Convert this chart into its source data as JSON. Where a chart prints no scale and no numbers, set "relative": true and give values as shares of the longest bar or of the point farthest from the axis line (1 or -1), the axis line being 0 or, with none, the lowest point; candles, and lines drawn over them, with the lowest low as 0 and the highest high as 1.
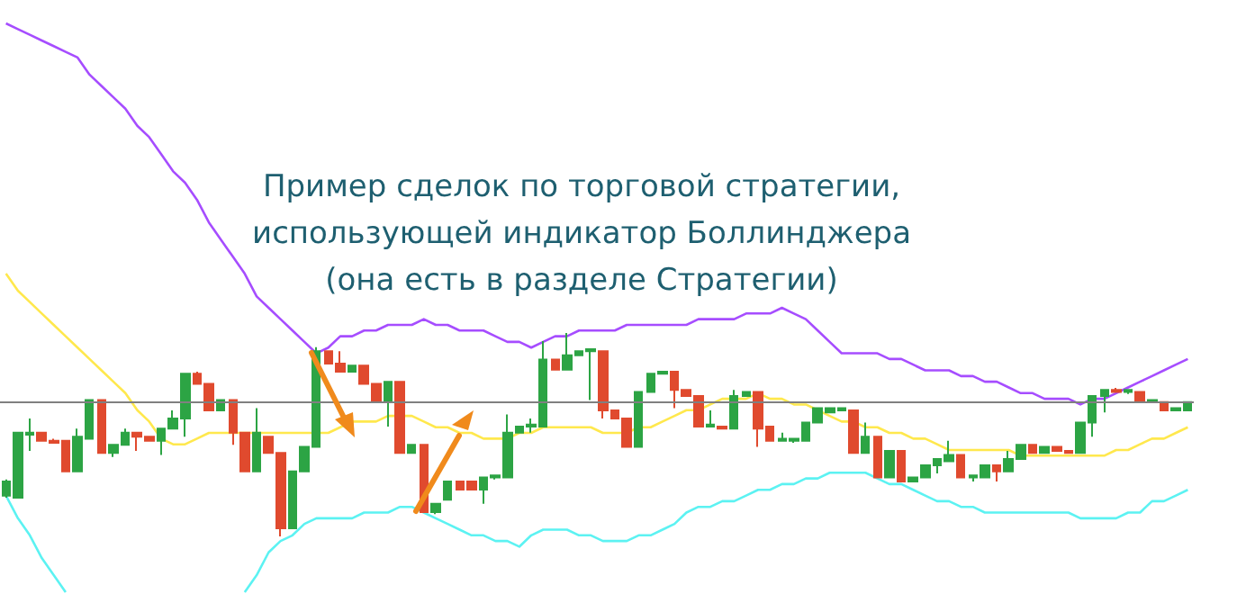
{
  "chart_data": [
    {
      "type": "line",
      "relative": true,
      "tick_labels": false,
      "categories": [
        null,
        null,
        null,
        null,
        null,
        null,
        null,
        null,
        null,
        null,
        null,
        null,
        null,
        null,
        null,
        null,
        null,
        null,
        null,
        null,
        null,
        null,
        null,
        null,
        null,
        null,
        null,
        null,
        null,
        null,
        null,
        null,
        null,
        null,
        null,
        null,
        null,
        null,
        null,
        null,
        null,
        null,
        null,
        null,
        null,
        null,
        null,
        null,
        null,
        null,
        null,
        null,
        null,
        null,
        null,
        null,
        null,
        null,
        null,
        null,
        null,
        null,
        null,
        null,
        null,
        null,
        null,
        null,
        null,
        null,
        null,
        null,
        null,
        null,
        null,
        null,
        null,
        null,
        null,
        null,
        null,
        null,
        null,
        null,
        null,
        null,
        null,
        null,
        null,
        null,
        null,
        null,
        null,
        null,
        null,
        null,
        null,
        null,
        null,
        null
      ],
      "series": [
        {
          "type": "line",
          "color": "#a64dff",
          "values": [
            1.0,
            0.99,
            0.98,
            0.97,
            0.96,
            0.95,
            0.94,
            0.91,
            0.89,
            0.87,
            0.85,
            0.82,
            0.8,
            0.77,
            0.74,
            0.72,
            0.69,
            0.65,
            0.62,
            0.59,
            0.56,
            0.52,
            0.5,
            0.48,
            0.46,
            0.44,
            0.42,
            0.43,
            0.45,
            0.45,
            0.46,
            0.46,
            0.47,
            0.47,
            0.47,
            0.48,
            0.47,
            0.47,
            0.46,
            0.46,
            0.46,
            0.45,
            0.44,
            0.44,
            0.43,
            0.44,
            0.45,
            0.45,
            0.46,
            0.46,
            0.46,
            0.46,
            0.47,
            0.47,
            0.47,
            0.47,
            0.47,
            0.47,
            0.48,
            0.48,
            0.48,
            0.48,
            0.49,
            0.49,
            0.49,
            0.5,
            0.49,
            0.48,
            0.46,
            0.44,
            0.42,
            0.42,
            0.42,
            0.42,
            0.41,
            0.41,
            0.4,
            0.39,
            0.39,
            0.39,
            0.38,
            0.38,
            0.37,
            0.37,
            0.36,
            0.35,
            0.35,
            0.34,
            0.34,
            0.34,
            0.33,
            0.34,
            0.34,
            0.35,
            0.36,
            0.37,
            0.38,
            0.39,
            0.4,
            0.41
          ]
        },
        {
          "type": "line",
          "color": "#ffe84d",
          "values": [
            0.56,
            0.53,
            0.51,
            0.49,
            0.47,
            0.45,
            0.43,
            0.41,
            0.39,
            0.37,
            0.35,
            0.32,
            0.3,
            0.27,
            0.26,
            0.26,
            0.27,
            0.28,
            0.28,
            0.28,
            0.28,
            0.28,
            0.28,
            0.28,
            0.28,
            0.28,
            0.28,
            0.28,
            0.29,
            0.3,
            0.3,
            0.3,
            0.31,
            0.31,
            0.31,
            0.3,
            0.29,
            0.29,
            0.28,
            0.28,
            0.27,
            0.27,
            0.27,
            0.28,
            0.28,
            0.29,
            0.29,
            0.29,
            0.29,
            0.29,
            0.28,
            0.28,
            0.28,
            0.29,
            0.29,
            0.3,
            0.31,
            0.32,
            0.32,
            0.33,
            0.34,
            0.34,
            0.34,
            0.35,
            0.34,
            0.34,
            0.33,
            0.33,
            0.32,
            0.31,
            0.3,
            0.3,
            0.29,
            0.29,
            0.28,
            0.28,
            0.27,
            0.27,
            0.26,
            0.25,
            0.25,
            0.25,
            0.25,
            0.25,
            0.25,
            0.24,
            0.24,
            0.24,
            0.24,
            0.24,
            0.24,
            0.24,
            0.24,
            0.25,
            0.25,
            0.26,
            0.27,
            0.27,
            0.28,
            0.29
          ]
        },
        {
          "type": "line",
          "color": "#5cf2f2",
          "values": [
            0.17,
            0.13,
            0.1,
            0.06,
            0.03,
            0,
            null,
            null,
            null,
            null,
            null,
            null,
            null,
            null,
            null,
            null,
            null,
            null,
            null,
            null,
            0,
            0.03,
            0.07,
            0.09,
            0.1,
            0.12,
            0.13,
            0.13,
            0.13,
            0.13,
            0.14,
            0.14,
            0.14,
            0.15,
            0.15,
            0.14,
            0.13,
            0.12,
            0.11,
            0.1,
            0.1,
            0.09,
            0.09,
            0.08,
            0.1,
            0.11,
            0.11,
            0.11,
            0.1,
            0.1,
            0.09,
            0.09,
            0.09,
            0.1,
            0.1,
            0.11,
            0.12,
            0.14,
            0.15,
            0.15,
            0.16,
            0.16,
            0.17,
            0.18,
            0.18,
            0.19,
            0.19,
            0.2,
            0.2,
            0.21,
            0.21,
            0.21,
            0.21,
            0.2,
            0.19,
            0.19,
            0.18,
            0.17,
            0.16,
            0.16,
            0.15,
            0.15,
            0.14,
            0.14,
            0.14,
            0.14,
            0.14,
            0.14,
            0.14,
            0.14,
            0.13,
            0.13,
            0.13,
            0.13,
            0.14,
            0.14,
            0.16,
            0.16,
            0.17,
            0.18
          ]
        }
      ]
    },
    {
      "type": "candlestick",
      "title": "Пример сделок по торговой стратегии,\nиспользующей индикатор Боллинджера\n(она есть в разделе Стратегии)",
      "relative": true,
      "tick_labels": false,
      "categories": [
        null,
        null,
        null,
        null,
        null,
        null,
        null,
        null,
        null,
        null,
        null,
        null,
        null,
        null,
        null,
        null,
        null,
        null,
        null,
        null,
        null,
        null,
        null,
        null,
        null,
        null,
        null,
        null,
        null,
        null,
        null,
        null,
        null,
        null,
        null,
        null,
        null,
        null,
        null,
        null,
        null,
        null,
        null,
        null,
        null,
        null,
        null,
        null,
        null,
        null,
        null,
        null,
        null,
        null,
        null,
        null,
        null,
        null,
        null,
        null,
        null,
        null,
        null,
        null,
        null,
        null,
        null,
        null,
        null,
        null,
        null,
        null,
        null,
        null,
        null,
        null,
        null,
        null,
        null,
        null,
        null,
        null,
        null,
        null,
        null,
        null,
        null,
        null,
        null,
        null,
        null,
        null,
        null,
        null,
        null,
        null,
        null,
        null,
        null,
        null
      ],
      "ohlc": [
        [
          0.2,
          0.28,
          0.19,
          0.27
        ],
        [
          0.19,
          0.51,
          0.19,
          0.51
        ],
        [
          0.5,
          0.58,
          0.42,
          0.51
        ],
        [
          0.51,
          0.51,
          0.47,
          0.47
        ],
        [
          0.47,
          0.48,
          0.46,
          0.46
        ],
        [
          0.47,
          0.47,
          0.32,
          0.32
        ],
        [
          0.32,
          0.53,
          0.32,
          0.49
        ],
        [
          0.48,
          0.67,
          0.48,
          0.67
        ],
        [
          0.67,
          0.67,
          0.41,
          0.41
        ],
        [
          0.41,
          0.45,
          0.39,
          0.45
        ],
        [
          0.45,
          0.53,
          0.45,
          0.51
        ],
        [
          0.51,
          0.51,
          0.42,
          0.49
        ],
        [
          0.49,
          0.49,
          0.47,
          0.47
        ],
        [
          0.47,
          0.53,
          0.4,
          0.53
        ],
        [
          0.53,
          0.62,
          0.53,
          0.58
        ],
        [
          0.58,
          0.8,
          0.49,
          0.8
        ],
        [
          0.8,
          0.81,
          0.75,
          0.75
        ],
        [
          0.75,
          0.75,
          0.62,
          0.62
        ],
        [
          0.62,
          0.67,
          0.62,
          0.67
        ],
        [
          0.67,
          0.67,
          0.45,
          0.51
        ],
        [
          0.51,
          0.51,
          0.32,
          0.32
        ],
        [
          0.32,
          0.63,
          0.32,
          0.51
        ],
        [
          0.49,
          0.49,
          0.41,
          0.41
        ],
        [
          0.41,
          0.41,
          0,
          0.04
        ],
        [
          0.04,
          0.32,
          0.04,
          0.32
        ],
        [
          0.32,
          0.44,
          0.32,
          0.44
        ],
        [
          0.44,
          0.93,
          0.44,
          0.91
        ],
        [
          0.91,
          0.91,
          0.85,
          0.85
        ],
        [
          0.85,
          0.91,
          0.81,
          0.81
        ],
        [
          0.81,
          0.84,
          0.81,
          0.84
        ],
        [
          0.84,
          0.84,
          0.75,
          0.75
        ],
        [
          0.75,
          0.75,
          0.66,
          0.66
        ],
        [
          0.66,
          0.76,
          0.54,
          0.76
        ],
        [
          0.76,
          0.76,
          0.41,
          0.41
        ],
        [
          0.41,
          0.45,
          0.41,
          0.45
        ],
        [
          0.45,
          0.45,
          0.12,
          0.12
        ],
        [
          0.12,
          0.16,
          0.11,
          0.16
        ],
        [
          0.18,
          0.27,
          0.18,
          0.27
        ],
        [
          0.27,
          0.27,
          0.23,
          0.23
        ],
        [
          0.27,
          0.27,
          0.23,
          0.23
        ],
        [
          0.23,
          0.29,
          0.16,
          0.29
        ],
        [
          0.29,
          0.3,
          0.28,
          0.3
        ],
        [
          0.29,
          0.6,
          0.29,
          0.51
        ],
        [
          0.51,
          0.54,
          0.51,
          0.54
        ],
        [
          0.54,
          0.58,
          0.51,
          0.55
        ],
        [
          0.54,
          0.96,
          0.54,
          0.87
        ],
        [
          0.87,
          0.87,
          0.82,
          0.82
        ],
        [
          0.82,
          1,
          0.82,
          0.89
        ],
        [
          0.89,
          0.91,
          0.89,
          0.91
        ],
        [
          0.91,
          0.92,
          0.67,
          0.92
        ],
        [
          0.91,
          0.91,
          0.58,
          0.62
        ],
        [
          0.62,
          0.62,
          0.58,
          0.58
        ],
        [
          0.58,
          0.58,
          0.44,
          0.44
        ],
        [
          0.44,
          0.71,
          0.44,
          0.71
        ],
        [
          0.71,
          0.8,
          0.71,
          0.8
        ],
        [
          0.8,
          0.81,
          0.8,
          0.81
        ],
        [
          0.81,
          0.81,
          0.63,
          0.72
        ],
        [
          0.72,
          0.72,
          0.69,
          0.69
        ],
        [
          0.69,
          0.69,
          0.54,
          0.54
        ],
        [
          0.54,
          0.62,
          0.54,
          0.55
        ],
        [
          0.54,
          0.54,
          0.53,
          0.53
        ],
        [
          0.53,
          0.72,
          0.53,
          0.69
        ],
        [
          0.69,
          0.71,
          0.69,
          0.71
        ],
        [
          0.71,
          0.71,
          0.44,
          0.53
        ],
        [
          0.54,
          0.54,
          0.47,
          0.47
        ],
        [
          0.47,
          0.51,
          0.47,
          0.48
        ],
        [
          0.47,
          0.48,
          0.46,
          0.48
        ],
        [
          0.47,
          0.56,
          0.47,
          0.56
        ],
        [
          0.56,
          0.63,
          0.56,
          0.63
        ],
        [
          0.61,
          0.63,
          0.61,
          0.63
        ],
        [
          0.62,
          0.63,
          0.62,
          0.63
        ],
        [
          0.62,
          0.62,
          0.41,
          0.41
        ],
        [
          0.41,
          0.56,
          0.41,
          0.49
        ],
        [
          0.49,
          0.49,
          0.29,
          0.29
        ],
        [
          0.29,
          0.42,
          0.29,
          0.42
        ],
        [
          0.42,
          0.42,
          0.27,
          0.27
        ],
        [
          0.27,
          0.29,
          0.27,
          0.29
        ],
        [
          0.29,
          0.35,
          0.29,
          0.35
        ],
        [
          0.35,
          0.38,
          0.31,
          0.38
        ],
        [
          0.37,
          0.47,
          0.37,
          0.4
        ],
        [
          0.4,
          0.4,
          0.29,
          0.29
        ],
        [
          0.29,
          0.3,
          0.27,
          0.3
        ],
        [
          0.29,
          0.35,
          0.29,
          0.35
        ],
        [
          0.35,
          0.35,
          0.27,
          0.32
        ],
        [
          0.32,
          0.42,
          0.32,
          0.38
        ],
        [
          0.38,
          0.45,
          0.38,
          0.45
        ],
        [
          0.45,
          0.45,
          0.41,
          0.41
        ],
        [
          0.41,
          0.44,
          0.41,
          0.44
        ],
        [
          0.44,
          0.44,
          0.42,
          0.42
        ],
        [
          0.42,
          0.42,
          0.41,
          0.41
        ],
        [
          0.41,
          0.56,
          0.41,
          0.56
        ],
        [
          0.56,
          0.69,
          0.49,
          0.69
        ],
        [
          0.69,
          0.72,
          0.61,
          0.72
        ],
        [
          0.72,
          0.73,
          0.71,
          0.71
        ],
        [
          0.71,
          0.72,
          0.7,
          0.72
        ],
        [
          0.71,
          0.71,
          0.66,
          0.66
        ],
        [
          0.66,
          0.67,
          0.66,
          0.67
        ],
        [
          0.66,
          0.66,
          0.62,
          0.62
        ],
        [
          0.62,
          0.63,
          0.62,
          0.63
        ],
        [
          0.62,
          0.66,
          0.62,
          0.66
        ]
      ],
      "colors": [
        "#2ca444",
        "#2ca444",
        "#2ca444",
        "#e04a2e",
        "#e04a2e",
        "#e04a2e",
        "#2ca444",
        "#2ca444",
        "#e04a2e",
        "#2ca444",
        "#2ca444",
        "#e04a2e",
        "#e04a2e",
        "#2ca444",
        "#2ca444",
        "#2ca444",
        "#e04a2e",
        "#e04a2e",
        "#2ca444",
        "#e04a2e",
        "#e04a2e",
        "#2ca444",
        "#e04a2e",
        "#e04a2e",
        "#2ca444",
        "#2ca444",
        "#2ca444",
        "#e04a2e",
        "#e04a2e",
        "#2ca444",
        "#e04a2e",
        "#e04a2e",
        "#2ca444",
        "#e04a2e",
        "#2ca444",
        "#e04a2e",
        "#2ca444",
        "#2ca444",
        "#e04a2e",
        "#e04a2e",
        "#2ca444",
        "#2ca444",
        "#2ca444",
        "#2ca444",
        "#2ca444",
        "#2ca444",
        "#e04a2e",
        "#2ca444",
        "#2ca444",
        "#2ca444",
        "#e04a2e",
        "#e04a2e",
        "#e04a2e",
        "#2ca444",
        "#2ca444",
        "#2ca444",
        "#e04a2e",
        "#e04a2e",
        "#e04a2e",
        "#2ca444",
        "#e04a2e",
        "#2ca444",
        "#2ca444",
        "#e04a2e",
        "#e04a2e",
        "#2ca444",
        "#2ca444",
        "#2ca444",
        "#2ca444",
        "#2ca444",
        "#2ca444",
        "#e04a2e",
        "#2ca444",
        "#e04a2e",
        "#2ca444",
        "#e04a2e",
        "#2ca444",
        "#2ca444",
        "#2ca444",
        "#2ca444",
        "#e04a2e",
        "#2ca444",
        "#2ca444",
        "#e04a2e",
        "#2ca444",
        "#2ca444",
        "#e04a2e",
        "#2ca444",
        "#e04a2e",
        "#e04a2e",
        "#2ca444",
        "#2ca444",
        "#2ca444",
        "#e04a2e",
        "#2ca444",
        "#e04a2e",
        "#2ca444",
        "#e04a2e",
        "#2ca444",
        "#2ca444"
      ],
      "ref_lines": [
        {
          "axis": "y",
          "value": 0.66,
          "color": "#808080"
        }
      ]
    }
  ]
}
